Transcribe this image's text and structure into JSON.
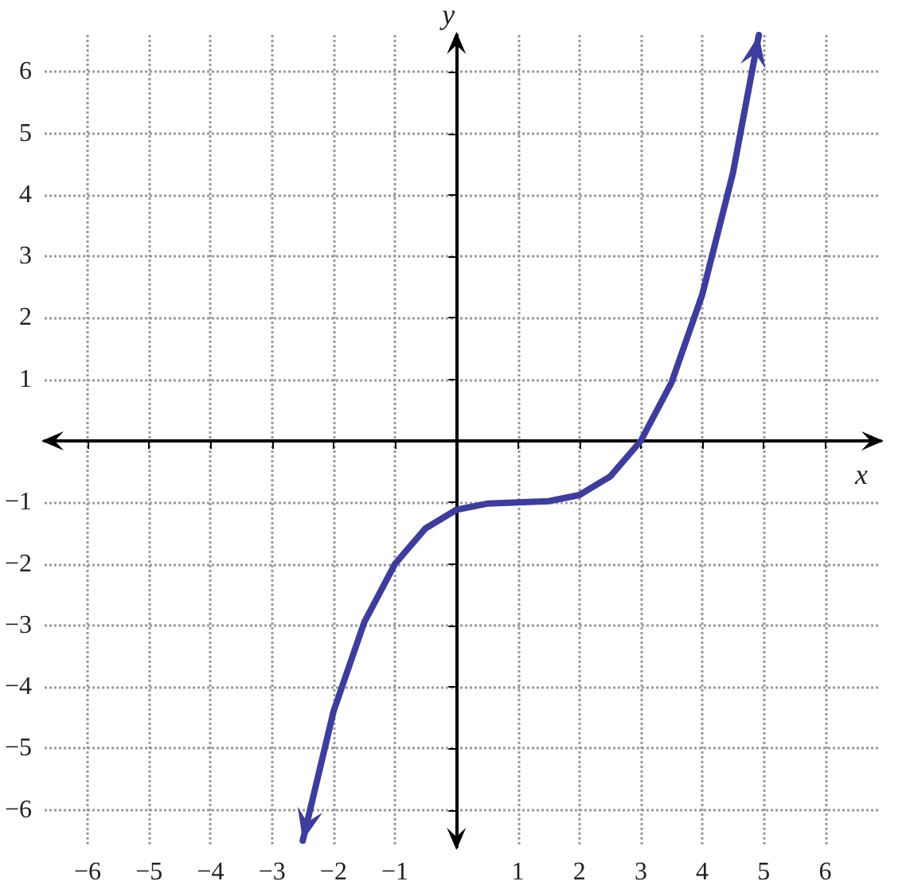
{
  "chart_data": {
    "type": "line",
    "xlabel": "x",
    "ylabel": "y",
    "series": [
      {
        "color": "#3d3d9e",
        "x": [
          -2.5,
          -2,
          -1.5,
          -1,
          -0.5,
          0,
          0.5,
          1,
          1.5,
          2,
          2.5,
          3,
          3.5,
          4,
          4.5,
          4.92
        ],
        "values": [
          -6.5,
          -4.4,
          -2.95,
          -2.0,
          -1.42,
          -1.12,
          -1.02,
          -1.0,
          -0.98,
          -0.88,
          -0.58,
          0,
          0.95,
          2.38,
          4.36,
          6.6
        ]
      }
    ],
    "xlim": [
      -6.7,
      6.9
    ],
    "ylim": [
      -6.6,
      6.6
    ],
    "xticks": [
      {
        "value": -6,
        "label": "−6"
      },
      {
        "value": -5,
        "label": "−5"
      },
      {
        "value": -4,
        "label": "−4"
      },
      {
        "value": -3,
        "label": "−3"
      },
      {
        "value": -2,
        "label": "−2"
      },
      {
        "value": -1,
        "label": "−1"
      },
      {
        "value": 0,
        "label": null
      },
      1,
      2,
      3,
      4,
      5,
      6
    ],
    "yticks": [
      {
        "value": -6,
        "label": "−6"
      },
      {
        "value": -5,
        "label": "−5"
      },
      {
        "value": -4,
        "label": "−4"
      },
      {
        "value": -3,
        "label": "−3"
      },
      {
        "value": -2,
        "label": "−2"
      },
      {
        "value": -1,
        "label": "−1"
      },
      {
        "value": 0,
        "label": null
      },
      1,
      2,
      3,
      4,
      5,
      6
    ],
    "grid": true,
    "marker": "none",
    "line_style": "solid"
  }
}
